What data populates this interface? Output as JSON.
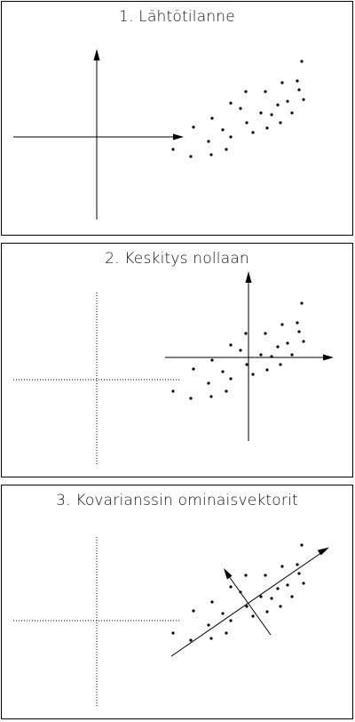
{
  "panels": [
    {
      "title": "1. Lähtötilanne"
    },
    {
      "title": "2. Keskitys nollaan"
    },
    {
      "title": "3. Kovarianssin ominaisvektorit"
    }
  ],
  "colors": {
    "ink": "#000000",
    "background": "#ffffff"
  }
}
